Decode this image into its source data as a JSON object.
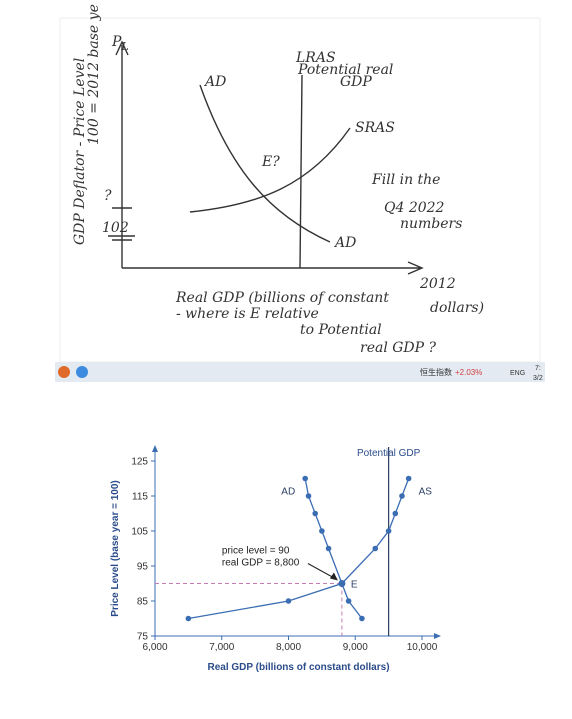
{
  "sketch": {
    "y_axis_symbol": "P",
    "y_axis_subscript": "L",
    "y_axis_title": "GDP Deflator - Price Level",
    "y_axis_note": "100 = 2012 base ye",
    "question_mark": "?",
    "tick_label": "102",
    "lras_label": "LRAS",
    "potential_label_1": "Potential real",
    "potential_label_2": "GDP",
    "ad_top_label": "AD",
    "ad_bottom_label": "AD",
    "sras_label": "SRAS",
    "e_label": "E?",
    "note_1": "Fill in the",
    "note_2": "Q4 2022",
    "note_3": "numbers",
    "year": "2012",
    "x_title_1": "Real GDP (billions of constant",
    "x_title_2": "dollars)",
    "question_1": "- where is E relative",
    "question_2": "to Potential",
    "question_3": "real GDP ?"
  },
  "taskbar": {
    "ticker": "恒生指数",
    "change": "+2.03%",
    "language": "ENG",
    "time": "7:",
    "date": "3/2"
  },
  "chart_data": {
    "type": "line",
    "x_label": "Real GDP (billions of constant dollars)",
    "y_label": "Price Level (base year = 100)",
    "xlim": [
      6000,
      10000
    ],
    "ylim": [
      75,
      125
    ],
    "xticks": [
      {
        "value": 6000,
        "label": "6,000"
      },
      {
        "value": 7000,
        "label": "7,000"
      },
      {
        "value": 8000,
        "label": "8,000"
      },
      {
        "value": 9000,
        "label": "9,000"
      },
      {
        "value": 10000,
        "label": "10,000"
      }
    ],
    "yticks": [
      75,
      85,
      95,
      105,
      115,
      125
    ],
    "series": [
      {
        "name": "AD",
        "color": "#3b6db3",
        "x": [
          8250,
          8300,
          8400,
          8500,
          8600,
          8800,
          8900,
          9100
        ],
        "values": [
          120,
          115,
          110,
          105,
          100,
          90,
          85,
          80
        ]
      },
      {
        "name": "AS",
        "color": "#3b6db3",
        "x": [
          6500,
          8000,
          8800,
          9300,
          9500,
          9600,
          9700,
          9800
        ],
        "values": [
          80,
          85,
          90,
          100,
          105,
          110,
          115,
          120
        ]
      }
    ],
    "reference_line": {
      "x": 9500,
      "label": "Potential GDP",
      "color": "#2b3f66"
    },
    "equilibrium": {
      "x": 8800,
      "y": 90,
      "label": "E",
      "color": "#c77db4"
    },
    "annotations": [
      "price level = 90",
      "real GDP = 8,800"
    ]
  }
}
